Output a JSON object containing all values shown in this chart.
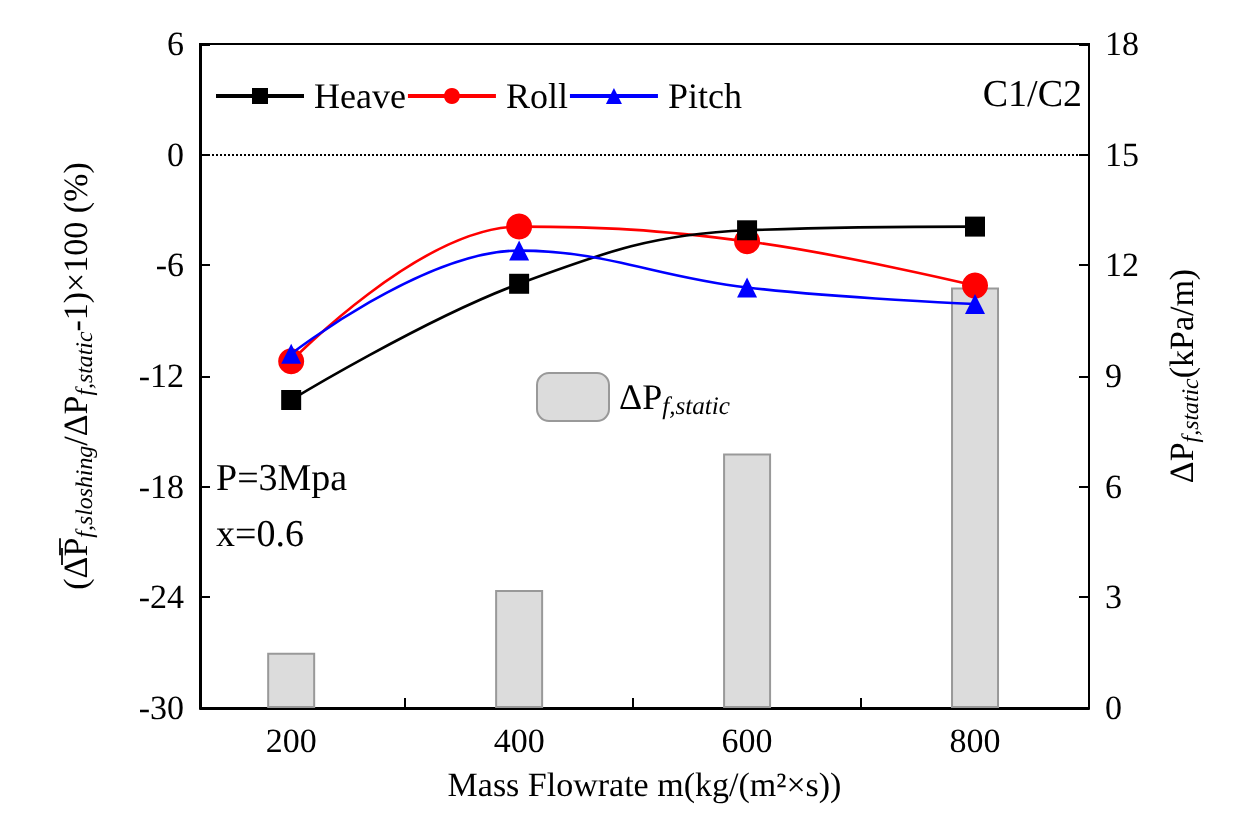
{
  "chart_data": {
    "type": "line",
    "xlabel": "Mass Flowrate m(kg/(m²×s))",
    "ylabel": "(Δ̅P̅$_{f,sloshing}$/ΔP$_{f,static}$-1)×100 (%)",
    "y2label": "ΔP$_{f,static}$(kPa/m)",
    "x": [
      200,
      400,
      600,
      800
    ],
    "series": [
      {
        "name": "Heave",
        "color": "#000000",
        "marker": "square",
        "values": [
          -13.3,
          -7.0,
          -4.1,
          -3.9
        ]
      },
      {
        "name": "Roll",
        "color": "#ff0000",
        "marker": "circle",
        "values": [
          -11.2,
          -3.9,
          -4.7,
          -7.1
        ]
      },
      {
        "name": "Pitch",
        "color": "#0000ff",
        "marker": "triangle",
        "values": [
          -10.8,
          -5.2,
          -7.2,
          -8.1
        ]
      },
      {
        "name": "ΔP$_{f,static}$",
        "type": "bar",
        "axis": "y2",
        "color": "#dcdcdc",
        "values": [
          1.5,
          3.2,
          6.9,
          11.4
        ]
      }
    ],
    "xlim": [
      120,
      900
    ],
    "xticks": [
      200,
      {
        "value": 300,
        "label": null
      },
      400,
      {
        "value": 500,
        "label": null
      },
      600,
      {
        "value": 700,
        "label": null
      },
      800
    ],
    "ylim": [
      -30,
      6
    ],
    "yticks": [
      -30,
      -24,
      -18,
      -12,
      -6,
      0,
      6
    ],
    "y2lim": [
      0,
      18
    ],
    "y2ticks": [
      0,
      3,
      6,
      9,
      12,
      15,
      18
    ],
    "ref_lines": [
      {
        "axis": "y",
        "value": 0,
        "color": "#000000",
        "line_style": "dotted"
      }
    ],
    "annotations": [
      "C1/C2",
      "P=3Mpa",
      "x=0.6"
    ],
    "legend": "top left",
    "grid": false,
    "line_style": "solid"
  }
}
